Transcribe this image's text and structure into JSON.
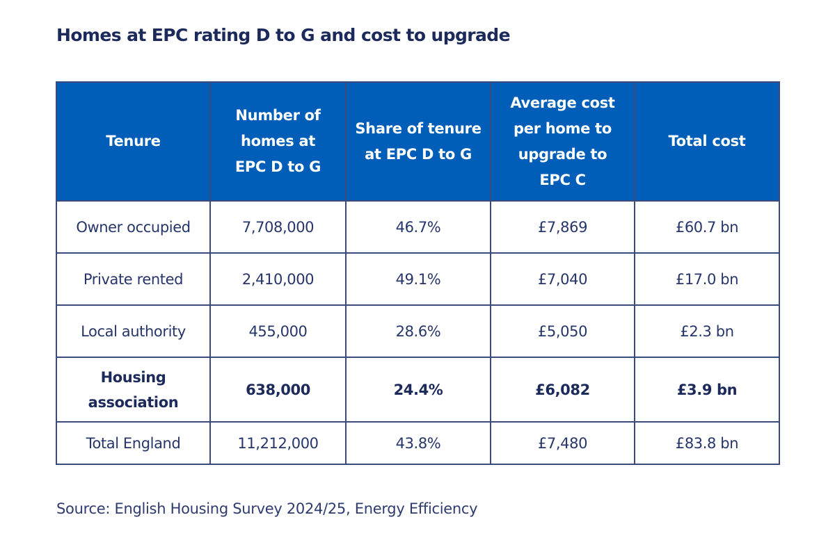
{
  "title": "Homes at EPC rating D to G and cost to upgrade",
  "colors": {
    "header_bg": "#005eb8",
    "header_text": "#ffffff",
    "border": "#3a4a7c",
    "text": "#1b2a5a"
  },
  "table": {
    "headers": [
      "Tenure",
      "Number of homes at EPC D to G",
      "Share of tenure at EPC D to G",
      "Average cost per home to upgrade to EPC C",
      "Total cost"
    ],
    "rows": [
      {
        "cells": [
          "Owner occupied",
          "7,708,000",
          "46.7%",
          "£7,869",
          "£60.7 bn"
        ],
        "bold": false
      },
      {
        "cells": [
          "Private rented",
          "2,410,000",
          "49.1%",
          "£7,040",
          "£17.0 bn"
        ],
        "bold": false
      },
      {
        "cells": [
          "Local authority",
          "455,000",
          "28.6%",
          "£5,050",
          "£2.3 bn"
        ],
        "bold": false
      },
      {
        "cells": [
          "Housing association",
          "638,000",
          "24.4%",
          "£6,082",
          "£3.9 bn"
        ],
        "bold": true
      },
      {
        "cells": [
          "Total England",
          "11,212,000",
          "43.8%",
          "£7,480",
          "£83.8 bn"
        ],
        "bold": false
      }
    ]
  },
  "source": "Source: English Housing Survey 2024/25, Energy Efficiency"
}
